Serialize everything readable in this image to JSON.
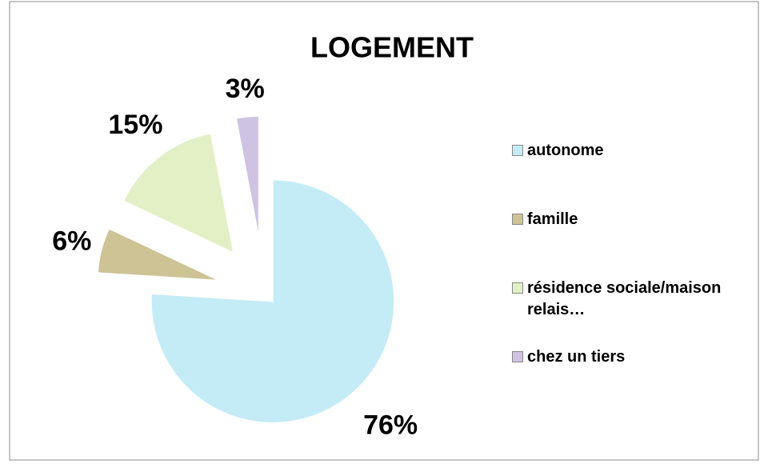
{
  "chart_data": {
    "type": "pie",
    "title": "LOGEMENT",
    "categories": [
      "autonome",
      "famille",
      "résidence sociale/maison relais…",
      "chez un tiers"
    ],
    "values": [
      76,
      6,
      15,
      3
    ],
    "value_labels": [
      "76%",
      "6%",
      "15%",
      "3%"
    ],
    "colors": [
      "#c4ecf6",
      "#cdc395",
      "#e3f0c6",
      "#cfc3e3"
    ],
    "legend": "right"
  }
}
